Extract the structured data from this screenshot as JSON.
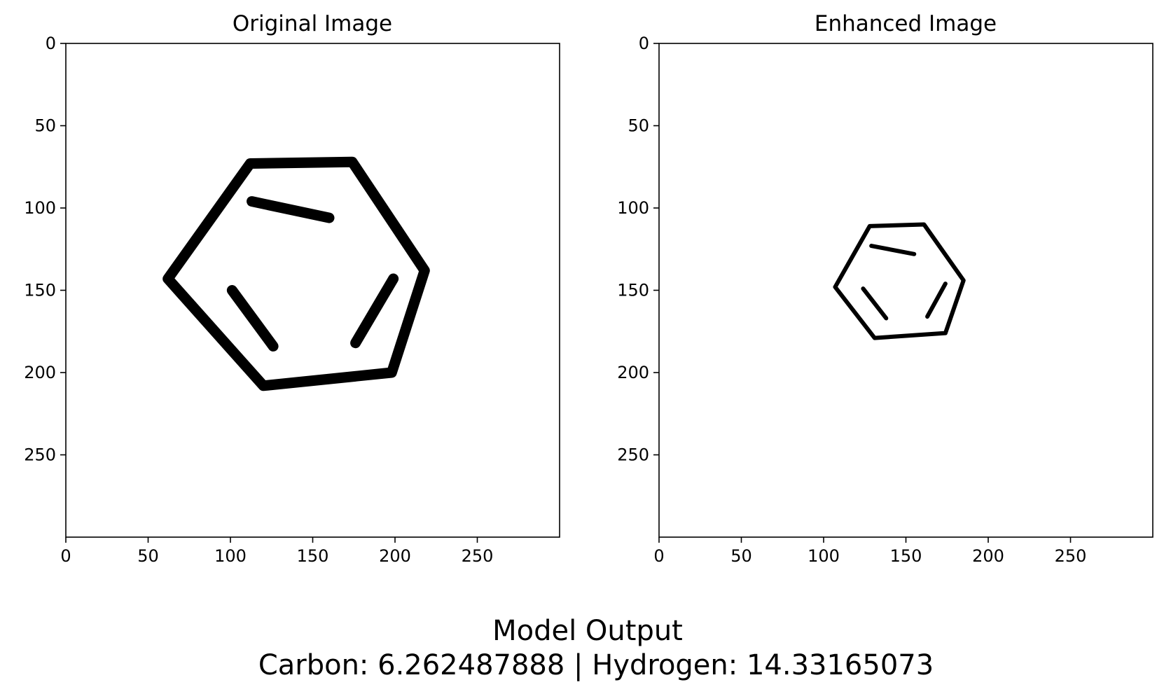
{
  "chart_data": [
    {
      "type": "image",
      "title": "Original Image",
      "xlabel": "",
      "ylabel": "",
      "xlim": [
        0,
        300
      ],
      "ylim": [
        300,
        0
      ],
      "xticks": [
        0,
        50,
        100,
        150,
        200,
        250
      ],
      "yticks": [
        0,
        50,
        100,
        150,
        200,
        250
      ],
      "grid": false,
      "content": "hand-drawn benzene ring, thick strokes",
      "ring_vertices": [
        [
          112,
          73
        ],
        [
          174,
          72
        ],
        [
          218,
          138
        ],
        [
          198,
          200
        ],
        [
          120,
          208
        ],
        [
          62,
          143
        ]
      ],
      "inner_bonds": [
        [
          [
            113,
            96
          ],
          [
            160,
            106
          ]
        ],
        [
          [
            101,
            150
          ],
          [
            126,
            184
          ]
        ],
        [
          [
            199,
            143
          ],
          [
            176,
            182
          ]
        ]
      ]
    },
    {
      "type": "image",
      "title": "Enhanced Image",
      "xlabel": "",
      "ylabel": "",
      "xlim": [
        0,
        300
      ],
      "ylim": [
        300,
        0
      ],
      "xticks": [
        0,
        50,
        100,
        150,
        200,
        250
      ],
      "yticks": [
        0,
        50,
        100,
        150,
        200,
        250
      ],
      "grid": false,
      "content": "hand-drawn benzene ring, thin strokes, scaled down",
      "ring_vertices": [
        [
          128,
          111
        ],
        [
          161,
          110
        ],
        [
          185,
          144
        ],
        [
          174,
          176
        ],
        [
          131,
          179
        ],
        [
          107,
          148
        ]
      ],
      "inner_bonds": [
        [
          [
            129,
            123
          ],
          [
            155,
            128
          ]
        ],
        [
          [
            124,
            149
          ],
          [
            138,
            167
          ]
        ],
        [
          [
            174,
            146
          ],
          [
            163,
            166
          ]
        ]
      ]
    }
  ],
  "caption": {
    "line1": "Model Output",
    "line2": "Carbon: 6.262487888 | Hydrogen: 14.33165073"
  }
}
